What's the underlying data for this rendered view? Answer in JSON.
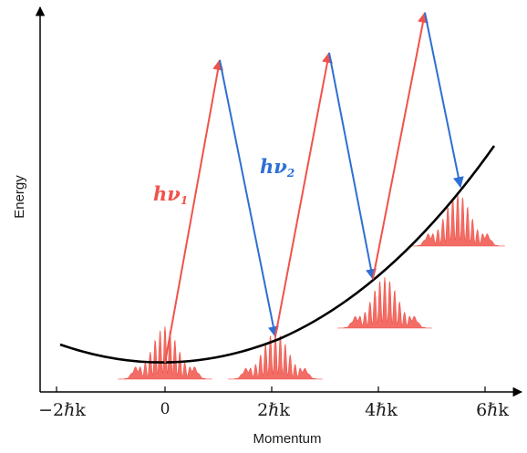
{
  "axes": {
    "y_label": "Energy",
    "x_label": "Momentum"
  },
  "ticks": [
    {
      "main": "−2ℏk"
    },
    {
      "main": "0"
    },
    {
      "main": "2ℏk"
    },
    {
      "main": "4ℏk"
    },
    {
      "main": "6ℏk"
    }
  ],
  "photons": {
    "absorb": {
      "main": "hν",
      "sub": "1",
      "color": "#f0534a"
    },
    "emit": {
      "main": "hν",
      "sub": "2",
      "color": "#2f6fd4"
    }
  },
  "colors": {
    "curve": "#000000",
    "wavepacket": "#f0534a",
    "axis": "#000000"
  }
}
